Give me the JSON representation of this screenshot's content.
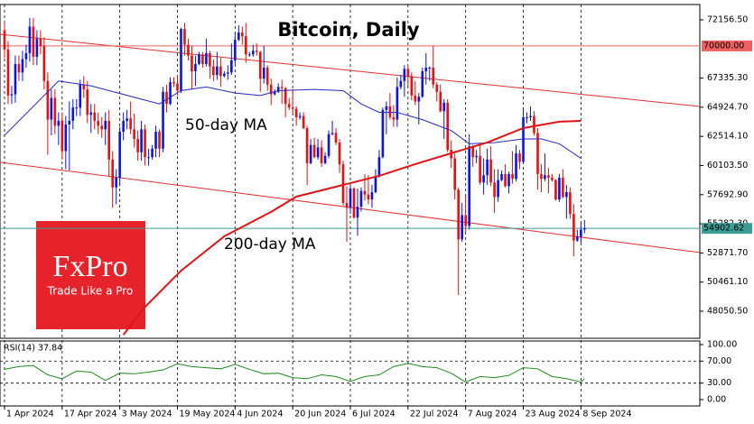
{
  "chart_data": {
    "type": "candlestick",
    "title": "Bitcoin, Daily",
    "xlim": [
      -1.25,
      193
    ],
    "ylim": [
      45810,
      73425
    ],
    "xticks": [
      {
        "value": 0,
        "label": "1 Apr 2024"
      },
      {
        "value": 16,
        "label": "17 Apr 2024"
      },
      {
        "value": 32,
        "label": "3 May 2024"
      },
      {
        "value": 48,
        "label": "19 May 2024"
      },
      {
        "value": 64,
        "label": "4 Jun 2024"
      },
      {
        "value": 80,
        "label": "20 Jun 2024"
      },
      {
        "value": 96,
        "label": "6 Jul 2024"
      },
      {
        "value": 112,
        "label": "22 Jul 2024"
      },
      {
        "value": 128,
        "label": "7 Aug 2024"
      },
      {
        "value": 144,
        "label": "23 Aug 2024"
      },
      {
        "value": 160,
        "label": "8 Sep 2024"
      }
    ],
    "yticks": [
      {
        "value": 72156.5,
        "label": "72156.50"
      },
      {
        "value": 67335.3,
        "label": "67335.30"
      },
      {
        "value": 64924.7,
        "label": "64924.70"
      },
      {
        "value": 62514.1,
        "label": "62514.10"
      },
      {
        "value": 60103.5,
        "label": "60103.50"
      },
      {
        "value": 57692.9,
        "label": "57692.90"
      },
      {
        "value": 55282.3,
        "label": "55282.30"
      },
      {
        "value": 52871.7,
        "label": "52871.70"
      },
      {
        "value": 50461.1,
        "label": "50461.10"
      },
      {
        "value": 48050.5,
        "label": "48050.50"
      }
    ],
    "up_color": "#0a14e6",
    "down_color": "#e61010",
    "last_color": "#3a9e94",
    "candles": {
      "open": [
        71300,
        69700,
        65900,
        66000,
        68500,
        67800,
        68900,
        69400,
        71600,
        69100,
        70600,
        70000,
        67100,
        63900,
        65700,
        63400,
        63800,
        61300,
        63500,
        63800,
        64900,
        64900,
        66800,
        66400,
        64300,
        64500,
        63800,
        63400,
        63100,
        63800,
        60600,
        58300,
        59100,
        62900,
        63800,
        64000,
        63100,
        62300,
        61200,
        63100,
        60800,
        60800,
        61500,
        62900,
        61500,
        66200,
        65200,
        67000,
        66900,
        66300,
        71400,
        70100,
        69200,
        67900,
        68500,
        69300,
        68500,
        69400,
        68300,
        67600,
        68300,
        67500,
        67700,
        67800,
        68800,
        70500,
        71100,
        70800,
        69300,
        69300,
        69600,
        69500,
        67300,
        68200,
        66800,
        66000,
        66200,
        66600,
        66500,
        65200,
        64900,
        64800,
        64100,
        64200,
        63200,
        60300,
        61800,
        60800,
        61600,
        60300,
        60900,
        62700,
        62800,
        62000,
        60200,
        57000,
        56600,
        58200,
        55800,
        56700,
        58000,
        57700,
        57300,
        57900,
        59200,
        60800,
        64700,
        65000,
        64100,
        63900,
        66600,
        67100,
        68100,
        67500,
        65900,
        65400,
        65800,
        67900,
        68200,
        68200,
        66800,
        66200,
        64600,
        65300,
        61400,
        60700,
        58100,
        54000,
        56000,
        55100,
        61700,
        60800,
        60900,
        58700,
        59300,
        60600,
        58700,
        57500,
        58900,
        59400,
        58400,
        59400,
        59000,
        61100,
        60400,
        64100,
        64100,
        64200,
        62800,
        59400,
        59000,
        59300,
        59100,
        58900,
        57300,
        59100,
        57500,
        57900,
        56100,
        53900,
        54200,
        54800
      ],
      "high": [
        72000,
        70400,
        66700,
        69200,
        69200,
        69600,
        70100,
        72300,
        72300,
        71300,
        71300,
        70700,
        67800,
        66400,
        66400,
        64500,
        64500,
        64200,
        65400,
        65600,
        65600,
        67200,
        67500,
        67100,
        65200,
        65200,
        64500,
        64100,
        64500,
        64700,
        61300,
        59800,
        63300,
        64500,
        64700,
        65400,
        64400,
        63000,
        63800,
        63500,
        61500,
        61800,
        63400,
        63100,
        66600,
        66800,
        67400,
        67400,
        67600,
        71500,
        71900,
        70600,
        70000,
        69200,
        69500,
        69500,
        70600,
        69600,
        68900,
        69500,
        69000,
        67900,
        68400,
        70200,
        71100,
        71700,
        71600,
        71900,
        69500,
        70100,
        70200,
        69600,
        70000,
        68400,
        67300,
        66400,
        66900,
        67200,
        66600,
        65700,
        66400,
        65000,
        64500,
        64500,
        63400,
        62300,
        62400,
        62300,
        62200,
        61200,
        63000,
        63800,
        63200,
        62300,
        60500,
        58400,
        58500,
        58300,
        58200,
        58300,
        59400,
        59300,
        58500,
        59800,
        61400,
        64900,
        65400,
        66100,
        65100,
        67400,
        67600,
        68400,
        68400,
        67800,
        67100,
        66100,
        68200,
        69400,
        68300,
        70000,
        67000,
        66800,
        65600,
        65600,
        62200,
        61100,
        58300,
        57000,
        57700,
        62700,
        61800,
        61400,
        61800,
        60700,
        61500,
        61700,
        59800,
        59800,
        59700,
        60200,
        59600,
        61300,
        61800,
        61400,
        64900,
        64500,
        65000,
        64600,
        63200,
        60200,
        61100,
        59900,
        59400,
        59000,
        59400,
        59800,
        58500,
        58300,
        56900,
        54800,
        55300,
        55600
      ],
      "low": [
        69000,
        65200,
        65200,
        65300,
        67100,
        67100,
        68200,
        68700,
        68400,
        68400,
        69300,
        66400,
        61000,
        62600,
        62700,
        61800,
        60600,
        59800,
        59700,
        63100,
        64200,
        64200,
        65700,
        63600,
        62800,
        63100,
        62700,
        62400,
        61800,
        59200,
        56600,
        56900,
        58400,
        62200,
        63100,
        62700,
        61600,
        60500,
        60500,
        60100,
        60100,
        60600,
        60800,
        60800,
        61200,
        64500,
        65100,
        66600,
        65900,
        66100,
        69200,
        68800,
        66400,
        66700,
        68400,
        68200,
        68300,
        67300,
        67100,
        67200,
        66600,
        67400,
        67200,
        67600,
        68500,
        70400,
        70100,
        68600,
        69100,
        69100,
        69200,
        66200,
        66900,
        66300,
        65100,
        65900,
        66100,
        65200,
        64100,
        64700,
        64300,
        63400,
        63900,
        63100,
        58500,
        60200,
        60700,
        60600,
        60000,
        60200,
        60700,
        62600,
        61800,
        59500,
        56800,
        53800,
        56100,
        55700,
        54300,
        56300,
        57200,
        56900,
        56600,
        57800,
        59100,
        60700,
        62700,
        63900,
        63300,
        63300,
        66400,
        65800,
        66600,
        65500,
        65100,
        63500,
        65700,
        66800,
        67100,
        66500,
        65400,
        64500,
        62300,
        61200,
        59900,
        57300,
        49400,
        53800,
        54600,
        54800,
        60000,
        60300,
        58500,
        57700,
        58500,
        58400,
        56200,
        57100,
        58800,
        58300,
        57800,
        58600,
        58800,
        59800,
        60300,
        63600,
        63800,
        62600,
        58100,
        57900,
        58800,
        57800,
        58800,
        57200,
        57100,
        57400,
        55700,
        55700,
        52600,
        53800,
        53700,
        54500
      ],
      "close": [
        69700,
        65900,
        66000,
        68500,
        67800,
        68900,
        69400,
        71600,
        69100,
        70600,
        70000,
        67100,
        63900,
        65700,
        63400,
        63800,
        61300,
        63500,
        63800,
        64900,
        64900,
        66800,
        66400,
        64300,
        64500,
        63800,
        63400,
        63100,
        63800,
        60600,
        58300,
        59100,
        62900,
        63800,
        64000,
        63100,
        62300,
        61200,
        63100,
        60800,
        60800,
        61500,
        62900,
        61500,
        66200,
        65200,
        67000,
        66900,
        66300,
        71400,
        70100,
        69200,
        67900,
        68500,
        69300,
        68500,
        69400,
        68300,
        67600,
        68300,
        67500,
        67700,
        67800,
        68800,
        70500,
        71100,
        70800,
        69300,
        69300,
        69600,
        69500,
        67300,
        68200,
        66800,
        66000,
        66200,
        66600,
        66500,
        65200,
        64900,
        64800,
        64100,
        64200,
        63200,
        60300,
        61800,
        60800,
        61600,
        60300,
        60900,
        62700,
        62800,
        62000,
        60200,
        57000,
        56600,
        58200,
        55800,
        56700,
        58000,
        57700,
        57300,
        57900,
        59200,
        60800,
        64700,
        65000,
        64100,
        63900,
        66600,
        67100,
        68100,
        67500,
        65900,
        65400,
        65800,
        67900,
        68200,
        68200,
        66800,
        66200,
        64600,
        65300,
        61400,
        60700,
        58100,
        54000,
        56000,
        55100,
        61700,
        60800,
        60900,
        58700,
        59300,
        60600,
        58700,
        57500,
        58900,
        59400,
        58400,
        59400,
        59000,
        61100,
        60400,
        64100,
        64100,
        64200,
        62800,
        59400,
        59000,
        59300,
        59100,
        58900,
        57300,
        59100,
        57500,
        57900,
        56100,
        53900,
        54200,
        54800,
        54902.62
      ]
    },
    "moving_averages": [
      {
        "name": "50-day MA",
        "color": "#2626c4",
        "x": [
          0,
          15,
          24,
          43,
          49,
          56,
          64,
          71,
          76,
          86,
          94,
          99,
          104,
          109,
          116,
          124,
          129,
          136,
          144,
          149,
          154,
          160
        ],
        "values": [
          62600,
          67100,
          66700,
          65200,
          66300,
          66600,
          66100,
          65900,
          66300,
          66400,
          66300,
          65200,
          64500,
          64500,
          63900,
          63000,
          61900,
          62000,
          62300,
          62300,
          61900,
          60700
        ]
      },
      {
        "name": "200-day MA",
        "color": "#e01414",
        "x": [
          33,
          39,
          49,
          61,
          74,
          81,
          94,
          104,
          114,
          124,
          134,
          144,
          154,
          160
        ],
        "values": [
          46100,
          48400,
          51400,
          54250,
          56270,
          57530,
          58500,
          59250,
          60220,
          61120,
          62010,
          63200,
          63730,
          63800
        ]
      }
    ],
    "channel_color": "#e03030",
    "channel_lines": [
      {
        "x": [
          -1.25,
          193
        ],
        "values": [
          70960,
          64990
        ]
      },
      {
        "x": [
          -1.25,
          193
        ],
        "values": [
          60370,
          52910
        ]
      }
    ],
    "levels": [
      {
        "value": 70000,
        "label": "70000.00",
        "color": "#f06060"
      }
    ],
    "rsi": {
      "title": "RSI(14)",
      "color": "#1f8a1f",
      "ylim": [
        -11.5,
        106.5
      ],
      "yticks": [
        {
          "value": 100,
          "label": "100.00"
        },
        {
          "value": 70,
          "label": "70.00"
        },
        {
          "value": 30,
          "label": "30.00"
        },
        {
          "value": 0,
          "label": "0.00"
        }
      ],
      "x": [
        0,
        4,
        8,
        12,
        16,
        20,
        24,
        28,
        32,
        36,
        40,
        44,
        48,
        52,
        56,
        60,
        64,
        68,
        72,
        76,
        80,
        84,
        88,
        92,
        96,
        100,
        104,
        108,
        112,
        116,
        120,
        124,
        128,
        132,
        136,
        140,
        144,
        148,
        152,
        156,
        160,
        161
      ],
      "values": [
        55,
        60,
        62,
        45,
        38,
        52,
        50,
        35,
        48,
        47,
        50,
        54,
        65,
        60,
        58,
        56,
        64,
        55,
        47,
        48,
        40,
        38,
        45,
        42,
        33,
        42,
        45,
        60,
        66,
        60,
        58,
        48,
        32,
        42,
        40,
        44,
        58,
        56,
        42,
        38,
        32,
        37.84
      ]
    },
    "watermark": {
      "name": "FxPro",
      "tagline": "Trade Like a Pro"
    }
  }
}
